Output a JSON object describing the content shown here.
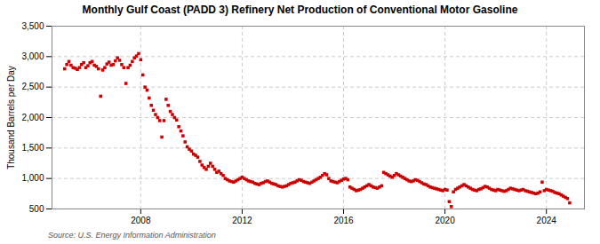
{
  "chart_data": {
    "type": "scatter",
    "title": "Monthly Gulf Coast (PADD 3) Refinery Net Production of Conventional Motor Gasoline",
    "ylabel": "Thousand Barrels per Day",
    "annotations": [
      "Source: U.S. Energy Information Administration"
    ],
    "color": "#cc0000",
    "marker": "square",
    "grid": true,
    "xlim": [
      2004.5,
      2025.5
    ],
    "xticks": [
      2008,
      2012,
      2016,
      2020,
      2024
    ],
    "ylim": [
      500,
      3500
    ],
    "yticks": [
      500,
      {
        "value": 1000,
        "label": "1,000"
      },
      {
        "value": 1500,
        "label": "1,500"
      },
      {
        "value": 2000,
        "label": "2,000"
      },
      {
        "value": 2500,
        "label": "2,500"
      },
      {
        "value": 3000,
        "label": "3,000"
      },
      {
        "value": 3500,
        "label": "3,500"
      }
    ],
    "x": [
      2005.0,
      2005.083,
      2005.167,
      2005.25,
      2005.333,
      2005.417,
      2005.5,
      2005.583,
      2005.667,
      2005.75,
      2005.833,
      2005.917,
      2006.0,
      2006.083,
      2006.167,
      2006.25,
      2006.333,
      2006.417,
      2006.5,
      2006.583,
      2006.667,
      2006.75,
      2006.833,
      2006.917,
      2007.0,
      2007.083,
      2007.167,
      2007.25,
      2007.333,
      2007.417,
      2007.5,
      2007.583,
      2007.667,
      2007.75,
      2007.833,
      2007.917,
      2008.0,
      2008.083,
      2008.167,
      2008.25,
      2008.333,
      2008.417,
      2008.5,
      2008.583,
      2008.667,
      2008.75,
      2008.833,
      2008.917,
      2009.0,
      2009.083,
      2009.167,
      2009.25,
      2009.333,
      2009.417,
      2009.5,
      2009.583,
      2009.667,
      2009.75,
      2009.833,
      2009.917,
      2010.0,
      2010.083,
      2010.167,
      2010.25,
      2010.333,
      2010.417,
      2010.5,
      2010.583,
      2010.667,
      2010.75,
      2010.833,
      2010.917,
      2011.0,
      2011.083,
      2011.167,
      2011.25,
      2011.333,
      2011.417,
      2011.5,
      2011.583,
      2011.667,
      2011.75,
      2011.833,
      2011.917,
      2012.0,
      2012.083,
      2012.167,
      2012.25,
      2012.333,
      2012.417,
      2012.5,
      2012.583,
      2012.667,
      2012.75,
      2012.833,
      2012.917,
      2013.0,
      2013.083,
      2013.167,
      2013.25,
      2013.333,
      2013.417,
      2013.5,
      2013.583,
      2013.667,
      2013.75,
      2013.833,
      2013.917,
      2014.0,
      2014.083,
      2014.167,
      2014.25,
      2014.333,
      2014.417,
      2014.5,
      2014.583,
      2014.667,
      2014.75,
      2014.833,
      2014.917,
      2015.0,
      2015.083,
      2015.167,
      2015.25,
      2015.333,
      2015.417,
      2015.5,
      2015.583,
      2015.667,
      2015.75,
      2015.833,
      2015.917,
      2016.0,
      2016.083,
      2016.167,
      2016.25,
      2016.333,
      2016.417,
      2016.5,
      2016.583,
      2016.667,
      2016.75,
      2016.833,
      2016.917,
      2017.0,
      2017.083,
      2017.167,
      2017.25,
      2017.333,
      2017.417,
      2017.5,
      2017.583,
      2017.667,
      2017.75,
      2017.833,
      2017.917,
      2018.0,
      2018.083,
      2018.167,
      2018.25,
      2018.333,
      2018.417,
      2018.5,
      2018.583,
      2018.667,
      2018.75,
      2018.833,
      2018.917,
      2019.0,
      2019.083,
      2019.167,
      2019.25,
      2019.333,
      2019.417,
      2019.5,
      2019.583,
      2019.667,
      2019.75,
      2019.833,
      2019.917,
      2020.0,
      2020.083,
      2020.167,
      2020.25,
      2020.333,
      2020.417,
      2020.5,
      2020.583,
      2020.667,
      2020.75,
      2020.833,
      2020.917,
      2021.0,
      2021.083,
      2021.167,
      2021.25,
      2021.333,
      2021.417,
      2021.5,
      2021.583,
      2021.667,
      2021.75,
      2021.833,
      2021.917,
      2022.0,
      2022.083,
      2022.167,
      2022.25,
      2022.333,
      2022.417,
      2022.5,
      2022.583,
      2022.667,
      2022.75,
      2022.833,
      2022.917,
      2023.0,
      2023.083,
      2023.167,
      2023.25,
      2023.333,
      2023.417,
      2023.5,
      2023.583,
      2023.667,
      2023.75,
      2023.833,
      2023.917,
      2024.0,
      2024.083,
      2024.167,
      2024.25,
      2024.333,
      2024.417,
      2024.5,
      2024.583,
      2024.667,
      2024.75,
      2024.833,
      2024.917
    ],
    "values": [
      2800,
      2870,
      2920,
      2860,
      2820,
      2810,
      2790,
      2820,
      2870,
      2900,
      2820,
      2850,
      2900,
      2920,
      2860,
      2840,
      2800,
      2350,
      2780,
      2820,
      2880,
      2910,
      2860,
      2870,
      2930,
      2980,
      2940,
      2870,
      2820,
      2560,
      2820,
      2860,
      2920,
      2980,
      3010,
      3050,
      2950,
      2700,
      2500,
      2450,
      2320,
      2200,
      2120,
      2050,
      2000,
      1950,
      1680,
      1950,
      2300,
      2200,
      2100,
      2050,
      2000,
      1960,
      1850,
      1780,
      1700,
      1600,
      1520,
      1480,
      1450,
      1400,
      1380,
      1350,
      1280,
      1220,
      1180,
      1150,
      1200,
      1250,
      1200,
      1150,
      1100,
      1120,
      1080,
      1050,
      1000,
      980,
      960,
      950,
      940,
      960,
      980,
      1000,
      1020,
      1000,
      980,
      960,
      950,
      940,
      920,
      910,
      900,
      920,
      930,
      950,
      960,
      940,
      920,
      910,
      900,
      880,
      870,
      860,
      870,
      880,
      900,
      920,
      930,
      940,
      960,
      980,
      970,
      950,
      940,
      930,
      920,
      940,
      960,
      980,
      1000,
      1020,
      1050,
      1080,
      1060,
      1000,
      960,
      950,
      940,
      930,
      950,
      970,
      990,
      1000,
      980,
      860,
      840,
      820,
      800,
      810,
      820,
      840,
      860,
      880,
      900,
      880,
      860,
      850,
      840,
      860,
      880,
      1100,
      1080,
      1060,
      1040,
      1020,
      1050,
      1080,
      1060,
      1040,
      1020,
      1000,
      980,
      960,
      950,
      960,
      980,
      970,
      950,
      930,
      910,
      900,
      880,
      860,
      850,
      840,
      830,
      820,
      810,
      800,
      820,
      810,
      620,
      540,
      780,
      820,
      840,
      860,
      880,
      900,
      880,
      860,
      840,
      820,
      810,
      800,
      820,
      830,
      850,
      870,
      860,
      840,
      820,
      810,
      800,
      820,
      810,
      800,
      790,
      800,
      820,
      840,
      830,
      820,
      810,
      800,
      810,
      820,
      800,
      790,
      780,
      770,
      760,
      750,
      760,
      780,
      940,
      800,
      820,
      810,
      800,
      790,
      770,
      760,
      750,
      730,
      710,
      690,
      670,
      600
    ]
  }
}
